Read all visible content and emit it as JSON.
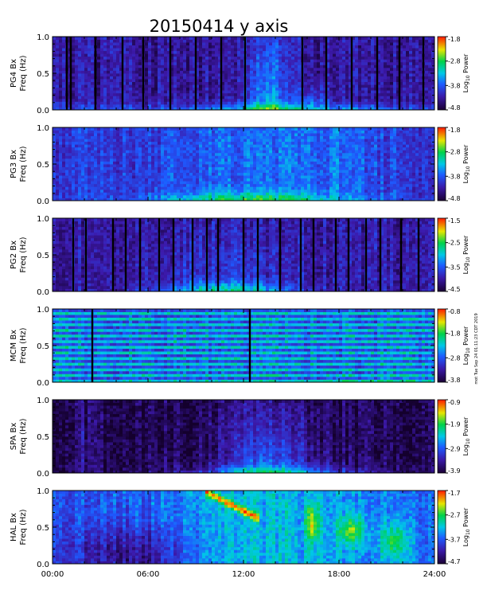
{
  "chart_data": {
    "type": "heatmap",
    "title": "20150414 y axis",
    "stamp": "mot Tue Sep 24 01:11:23 CDT 2019",
    "xticks": [
      "00:00",
      "06:00",
      "12:00",
      "18:00",
      "24:00"
    ],
    "xlim": [
      0,
      24
    ],
    "panels": [
      {
        "station": "PG4 Bx",
        "ylabel": "Freq (Hz)",
        "ylim": [
          0,
          1.0
        ],
        "yticks": [
          "0.0",
          "0.5",
          "1.0"
        ],
        "colorbar": {
          "label": "Log",
          "sub": "10",
          "label2": "Power",
          "ticks": [
            "-1.8",
            "-2.8",
            "-3.8",
            "-4.8"
          ],
          "range": [
            -4.8,
            -1.8
          ]
        },
        "gaps": [
          0.9,
          1.15,
          2.7,
          4.4,
          5.7,
          7.4,
          9.0,
          10.6,
          12.1,
          15.7,
          17.2,
          18.8,
          20.4,
          21.8,
          23.3
        ]
      },
      {
        "station": "PG3 Bx",
        "ylabel": "Freq (Hz)",
        "ylim": [
          0,
          1.0
        ],
        "yticks": [
          "0.0",
          "0.5",
          "1.0"
        ],
        "colorbar": {
          "label": "Log",
          "sub": "10",
          "label2": "Power",
          "ticks": [
            "-1.8",
            "-2.8",
            "-3.8",
            "-4.8"
          ],
          "range": [
            -4.8,
            -1.8
          ]
        },
        "gaps": []
      },
      {
        "station": "PG2 Bx",
        "ylabel": "Freq (Hz)",
        "ylim": [
          0,
          1.0
        ],
        "yticks": [
          "0.0",
          "0.5",
          "1.0"
        ],
        "colorbar": {
          "label": "Log",
          "sub": "10",
          "label2": "Power",
          "ticks": [
            "-1.5",
            "-2.5",
            "-3.5",
            "-4.5"
          ],
          "range": [
            -4.5,
            -1.5
          ]
        },
        "gaps": [
          1.3,
          2.1,
          3.8,
          4.6,
          5.5,
          6.7,
          7.6,
          8.8,
          9.7,
          10.4,
          12.0,
          12.9,
          14.3,
          15.6,
          16.4,
          17.8,
          18.6,
          19.7,
          20.6,
          21.9,
          23.0
        ]
      },
      {
        "station": "MCM Bx",
        "ylabel": "Freq (Hz)",
        "ylim": [
          0,
          1.0
        ],
        "yticks": [
          "0.0",
          "0.5",
          "1.0"
        ],
        "colorbar": {
          "label": "Log",
          "sub": "10",
          "label2": "Power",
          "ticks": [
            "-0.8",
            "-1.8",
            "-2.8",
            "-3.8"
          ],
          "range": [
            -3.8,
            -0.8
          ]
        },
        "gaps": [
          2.5,
          12.4
        ]
      },
      {
        "station": "SPA Bx",
        "ylabel": "Freq (Hz)",
        "ylim": [
          0,
          1.0
        ],
        "yticks": [
          "0.0",
          "0.5",
          "1.0"
        ],
        "colorbar": {
          "label": "Log",
          "sub": "10",
          "label2": "Power",
          "ticks": [
            "-0.9",
            "-1.9",
            "-2.9",
            "-3.9"
          ],
          "range": [
            -3.9,
            -0.9
          ]
        },
        "gaps": []
      },
      {
        "station": "HAL Bx",
        "ylabel": "Freq (Hz)",
        "ylim": [
          0,
          1.0
        ],
        "yticks": [
          "0.0",
          "0.5",
          "1.0"
        ],
        "colorbar": {
          "label": "Log",
          "sub": "10",
          "label2": "Power",
          "ticks": [
            "-1.7",
            "-2.7",
            "-3.7",
            "-4.7"
          ],
          "range": [
            -4.7,
            -1.7
          ]
        },
        "gaps": []
      }
    ]
  }
}
